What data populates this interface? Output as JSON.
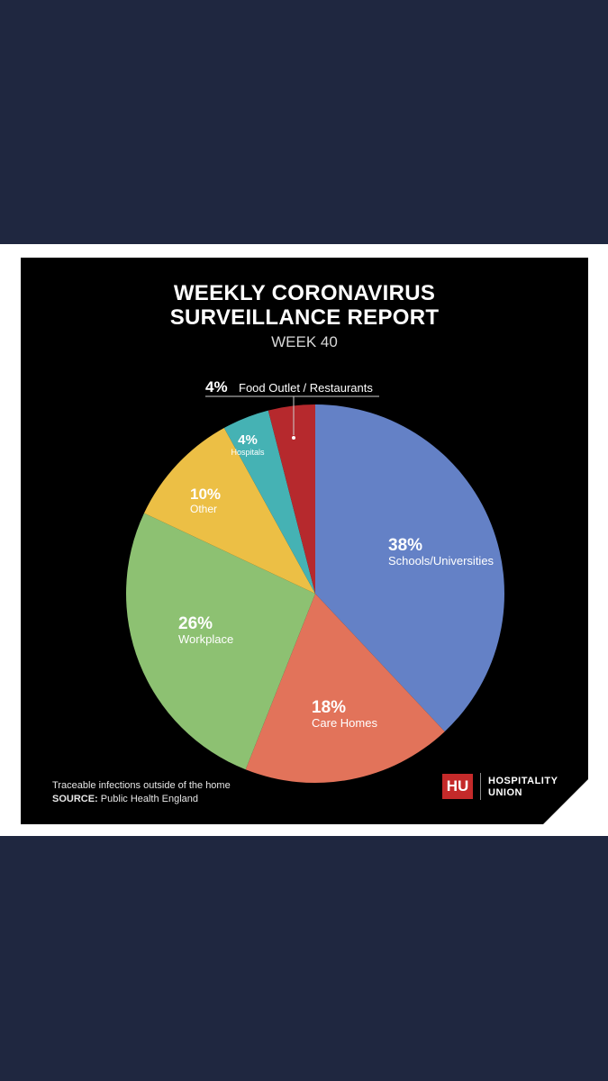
{
  "chart_data": {
    "type": "pie",
    "title": "WEEKLY CORONAVIRUS SURVEILLANCE REPORT",
    "title_lines": [
      "WEEKLY CORONAVIRUS",
      "SURVEILLANCE REPORT"
    ],
    "subtitle": "WEEK 40",
    "slices": [
      {
        "label": "Schools/Universities",
        "value": 38,
        "value_label": "38%",
        "color": "#6481c6"
      },
      {
        "label": "Care Homes",
        "value": 18,
        "value_label": "18%",
        "color": "#e2735a"
      },
      {
        "label": "Workplace",
        "value": 26,
        "value_label": "26%",
        "color": "#8dc172"
      },
      {
        "label": "Other",
        "value": 10,
        "value_label": "10%",
        "color": "#ecbf45"
      },
      {
        "label": "Hospitals",
        "value": 4,
        "value_label": "4%",
        "color": "#45b2b4"
      },
      {
        "label": "Food Outlet / Restaurants",
        "value": 4,
        "value_label": "4%",
        "color": "#b6292d"
      }
    ],
    "callout": {
      "value_label": "4%",
      "label": "Food Outlet / Restaurants"
    }
  },
  "footnote": {
    "note": "Traceable infections outside of the home",
    "source_label": "SOURCE:",
    "source_value": "Public Health England"
  },
  "logo": {
    "mark": "HU",
    "line1": "HOSPITALITY",
    "line2": "UNION",
    "color": "#c42a2a"
  }
}
